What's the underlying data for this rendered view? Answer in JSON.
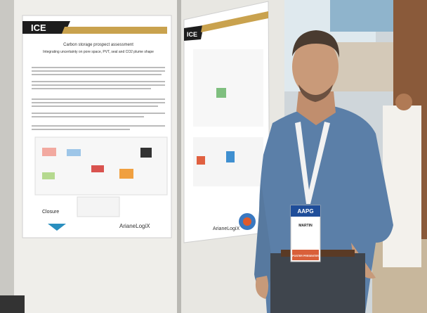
{
  "poster_left": {
    "logo": "ICE",
    "title": "Carbon storage prospect assessment",
    "subtitle": "Integrating uncertainty on pore space, PVT, seal and CO2 plume shape",
    "section": "Closure",
    "brand": "ArianeLogiX"
  },
  "poster_right": {
    "logo": "ICE",
    "brand": "ArianeLogiX"
  },
  "badge": {
    "org": "AAPG",
    "name": "MARTIN",
    "role": "POSTER PRESENTER"
  }
}
